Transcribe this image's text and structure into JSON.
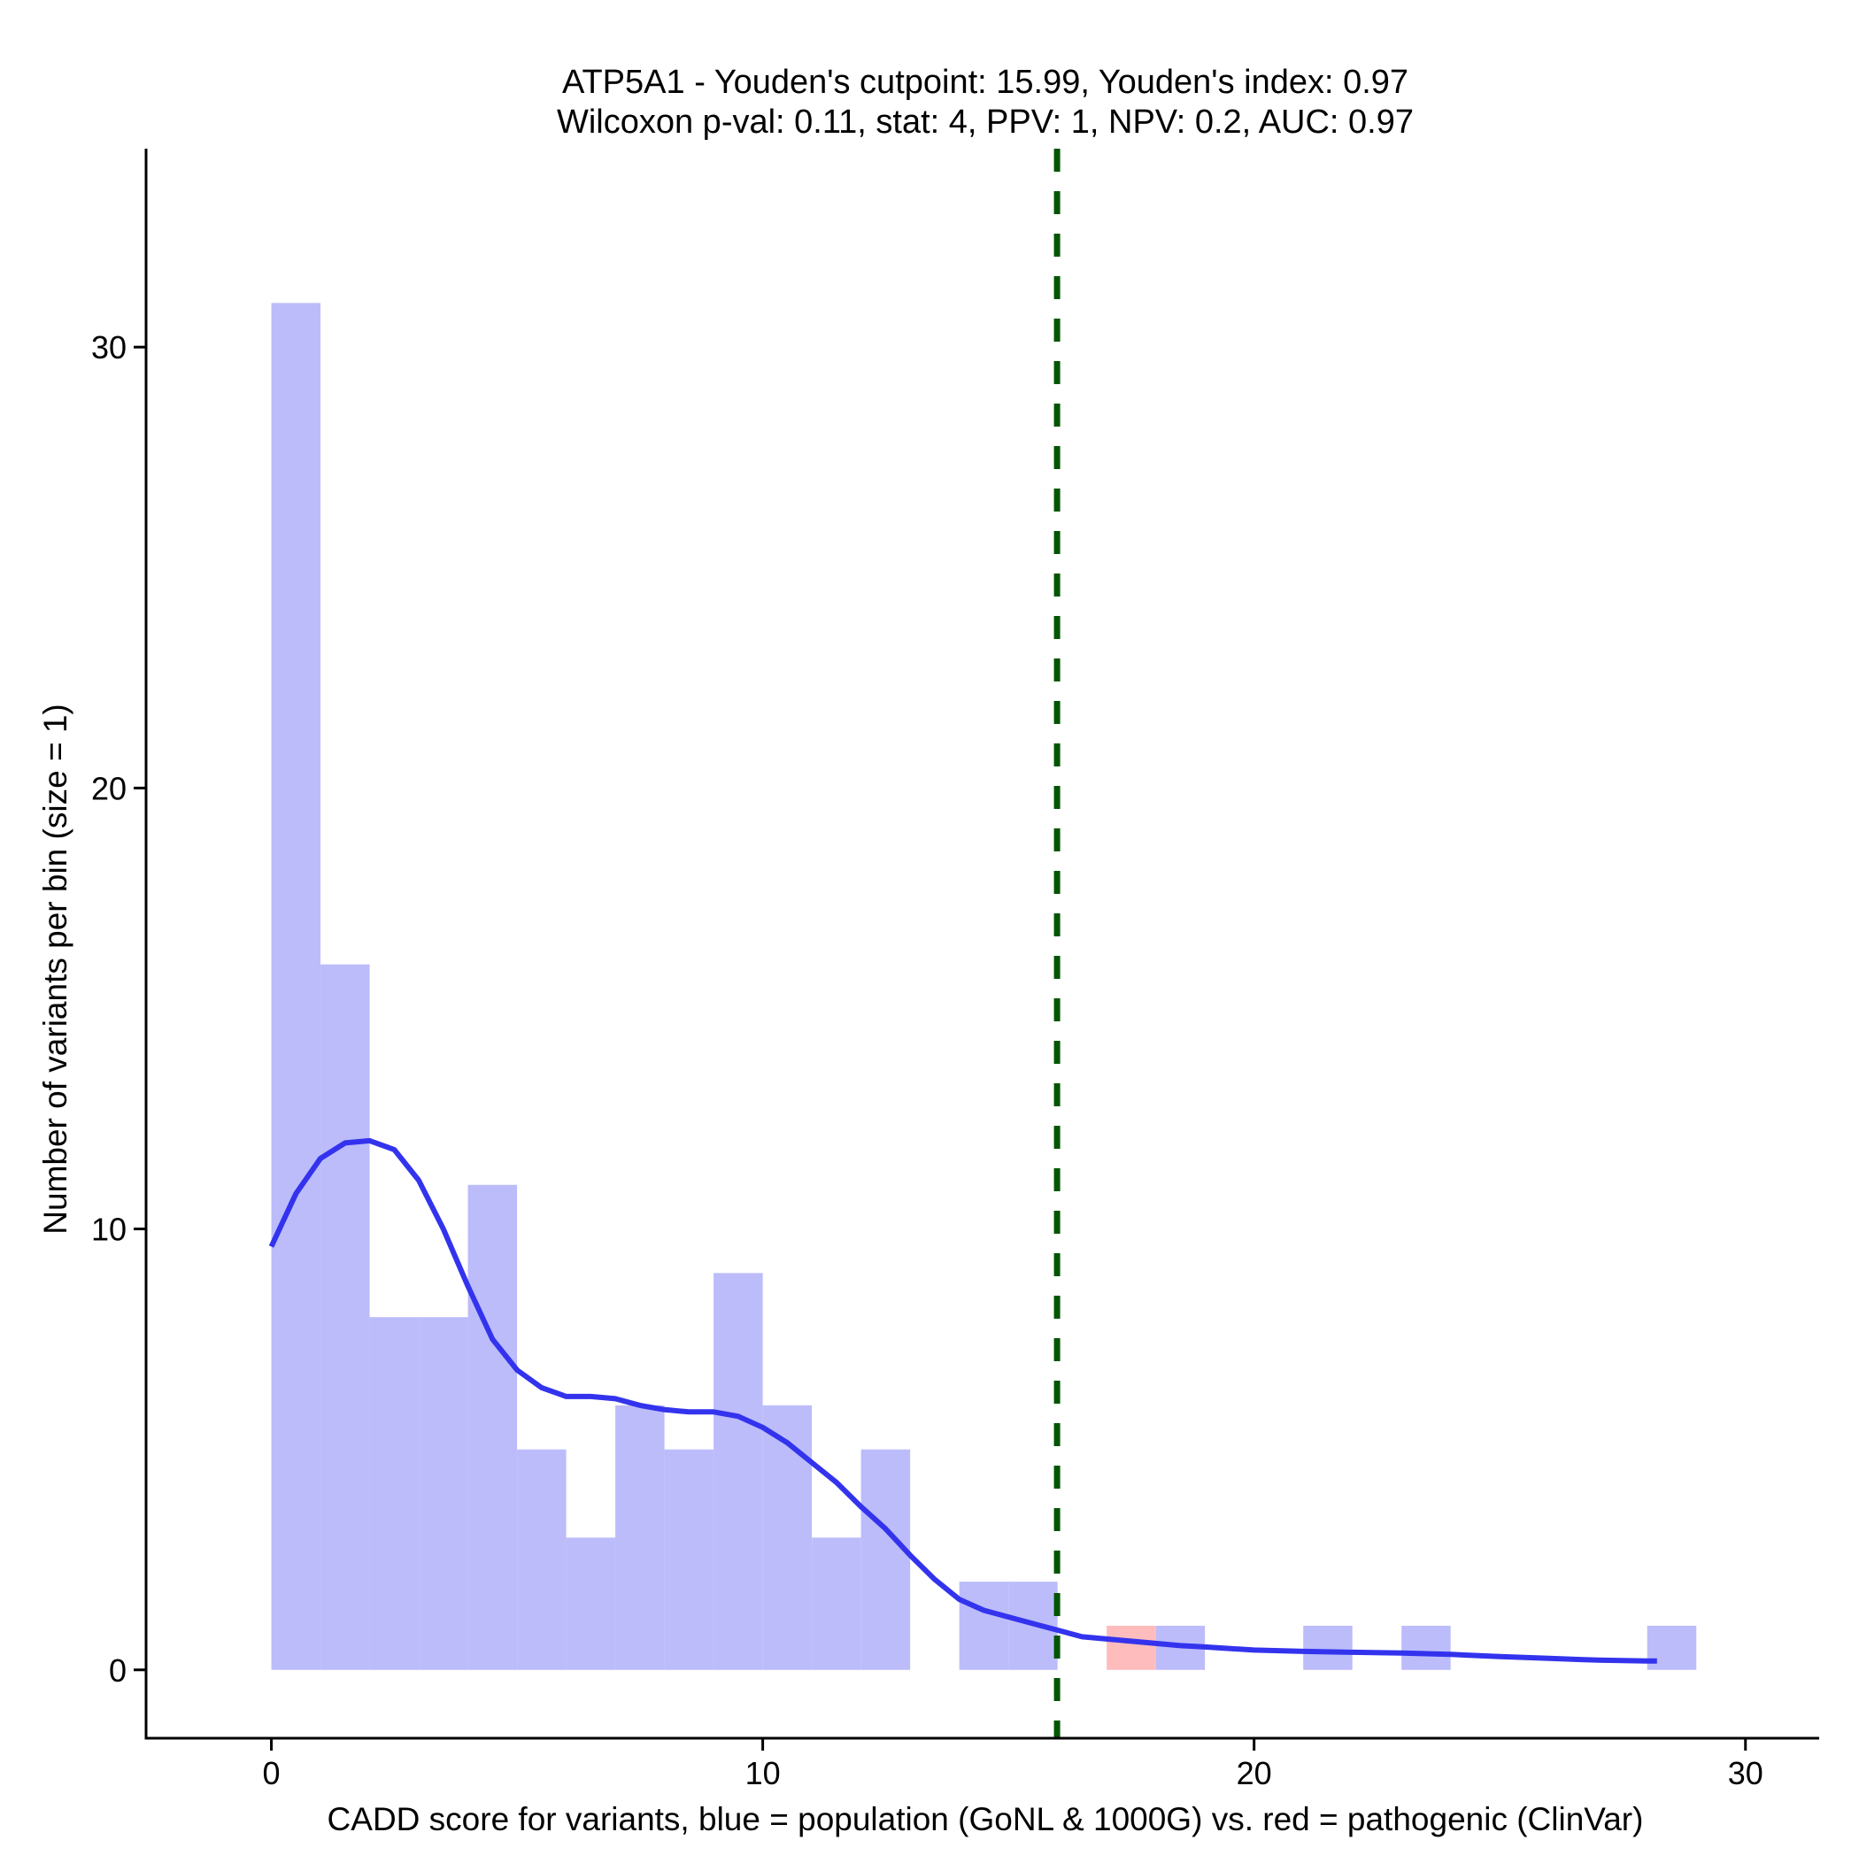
{
  "chart_data": {
    "type": "bar",
    "title_line1": "ATP5A1 - Youden's cutpoint: 15.99, Youden's index: 0.97",
    "title_line2": "Wilcoxon p-val: 0.11, stat: 4, PPV: 1, NPV: 0.2, AUC: 0.97",
    "xlabel": "CADD score for variants, blue = population (GoNL & 1000G) vs. red = pathogenic (ClinVar)",
    "ylabel": "Number of variants per bin (size = 1)",
    "xlim": [
      -2.55,
      31.5
    ],
    "ylim": [
      -1.55,
      34.5
    ],
    "x_ticks": [
      0,
      10,
      20,
      30
    ],
    "x_tick_labels": [
      "0",
      "10",
      "20",
      "30"
    ],
    "y_ticks": [
      0,
      10,
      20,
      30
    ],
    "y_tick_labels": [
      "0",
      "10",
      "20",
      "30"
    ],
    "bin_width": 1,
    "series": [
      {
        "name": "population (GoNL & 1000G)",
        "color": "#bcbcfb",
        "bins": [
          {
            "x0": 0,
            "count": 31
          },
          {
            "x0": 1,
            "count": 16
          },
          {
            "x0": 2,
            "count": 8
          },
          {
            "x0": 3,
            "count": 8
          },
          {
            "x0": 4,
            "count": 11
          },
          {
            "x0": 5,
            "count": 5
          },
          {
            "x0": 6,
            "count": 3
          },
          {
            "x0": 7,
            "count": 6
          },
          {
            "x0": 8,
            "count": 5
          },
          {
            "x0": 9,
            "count": 9
          },
          {
            "x0": 10,
            "count": 6
          },
          {
            "x0": 11,
            "count": 3
          },
          {
            "x0": 12,
            "count": 5
          },
          {
            "x0": 14,
            "count": 2
          },
          {
            "x0": 15,
            "count": 2
          },
          {
            "x0": 18,
            "count": 1
          },
          {
            "x0": 21,
            "count": 1
          },
          {
            "x0": 23,
            "count": 1
          },
          {
            "x0": 28,
            "count": 1
          }
        ]
      },
      {
        "name": "pathogenic (ClinVar)",
        "color": "#ffbcbc",
        "bins": [
          {
            "x0": 17,
            "count": 1
          }
        ]
      }
    ],
    "density_curve": {
      "color": "#3333ee",
      "points": [
        [
          0,
          9.6
        ],
        [
          0.5,
          10.8
        ],
        [
          1,
          11.6
        ],
        [
          1.5,
          11.95
        ],
        [
          2,
          12.0
        ],
        [
          2.5,
          11.8
        ],
        [
          3,
          11.1
        ],
        [
          3.5,
          10.0
        ],
        [
          4,
          8.7
        ],
        [
          4.5,
          7.5
        ],
        [
          5,
          6.8
        ],
        [
          5.5,
          6.4
        ],
        [
          6,
          6.2
        ],
        [
          6.5,
          6.2
        ],
        [
          7,
          6.15
        ],
        [
          7.5,
          6.0
        ],
        [
          8,
          5.9
        ],
        [
          8.5,
          5.85
        ],
        [
          9,
          5.85
        ],
        [
          9.5,
          5.75
        ],
        [
          10,
          5.5
        ],
        [
          10.5,
          5.15
        ],
        [
          11,
          4.7
        ],
        [
          11.5,
          4.25
        ],
        [
          12,
          3.7
        ],
        [
          12.5,
          3.2
        ],
        [
          13,
          2.6
        ],
        [
          13.5,
          2.05
        ],
        [
          14,
          1.6
        ],
        [
          14.5,
          1.35
        ],
        [
          15,
          1.2
        ],
        [
          15.5,
          1.05
        ],
        [
          16,
          0.9
        ],
        [
          16.5,
          0.75
        ],
        [
          17,
          0.7
        ],
        [
          17.5,
          0.65
        ],
        [
          18,
          0.6
        ],
        [
          18.5,
          0.55
        ],
        [
          19,
          0.52
        ],
        [
          20,
          0.45
        ],
        [
          21,
          0.42
        ],
        [
          22,
          0.4
        ],
        [
          23,
          0.38
        ],
        [
          24,
          0.35
        ],
        [
          25,
          0.3
        ],
        [
          26,
          0.26
        ],
        [
          27,
          0.22
        ],
        [
          28,
          0.2
        ],
        [
          28.2,
          0.2
        ]
      ]
    },
    "cutpoint": {
      "x": 15.99,
      "color": "#005500",
      "style": "dashed"
    }
  }
}
